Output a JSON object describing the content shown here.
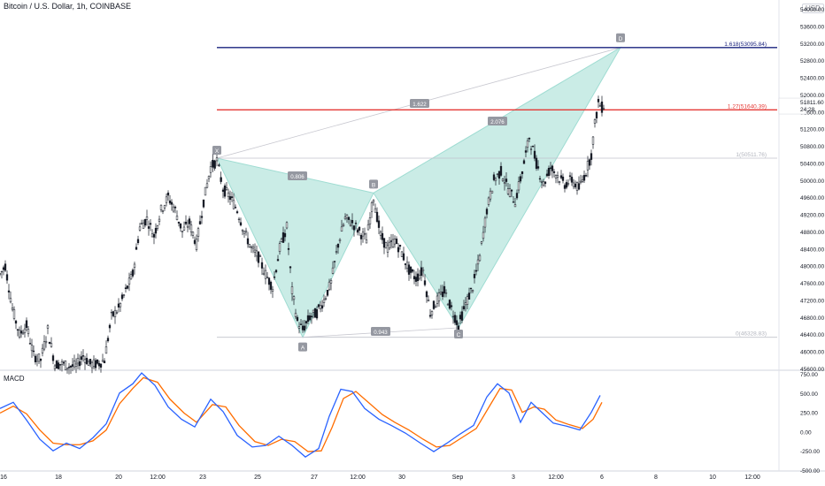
{
  "header": {
    "title": "Bitcoin / U.S. Dollar, 1h, COINBASE",
    "currency_badge": "USD"
  },
  "colors": {
    "candle_up": "#131722",
    "candle_down": "#131722",
    "pattern_fill": "#9fdcd2",
    "target_line": "#1a237e",
    "prz_line": "#e53935",
    "macd_line": "#2962ff",
    "signal_line": "#ff6d00"
  },
  "price_axis": {
    "ticks": [
      "54000.00",
      "53600.00",
      "53200.00",
      "52800.00",
      "52400.00",
      "52000.00",
      "51600.00",
      "51200.00",
      "50800.00",
      "50400.00",
      "50000.00",
      "49600.00",
      "49200.00",
      "48800.00",
      "48400.00",
      "48000.00",
      "47600.00",
      "47200.00",
      "46800.00",
      "46400.00",
      "46000.00",
      "45600.00"
    ],
    "last_price": "51811.60",
    "countdown": "24:28"
  },
  "time_axis": {
    "labels": [
      "16",
      "18",
      "20",
      "12:00",
      "23",
      "25",
      "27",
      "12:00",
      "30",
      "Sep",
      "3",
      "12:00",
      "6",
      "8",
      "10",
      "12:00"
    ]
  },
  "macd_axis": {
    "ticks": [
      "750.00",
      "500.00",
      "250.00",
      "0.00",
      "-250.00",
      "-500.00"
    ]
  },
  "macd_title": "MACD",
  "pattern": {
    "points": {
      "X": "X",
      "A": "A",
      "B": "B",
      "C": "C",
      "D": "D"
    },
    "ratios": {
      "xb": "0.806",
      "ac": "0.943",
      "bd": "2.076",
      "xd": "1.622"
    }
  },
  "levels": {
    "ext_1618": "1.618(53095.84)",
    "ext_127": "1.27(51640.39)",
    "level_1": "1(50511.76)",
    "level_0": "0(46328.83)"
  },
  "chart_data": {
    "type": "candlestick",
    "title": "Bitcoin / U.S. Dollar, 1h, COINBASE",
    "y_range": [
      45600,
      54000
    ],
    "x_labels": [
      "16",
      "18",
      "20",
      "12:00",
      "23",
      "25",
      "27",
      "12:00",
      "30",
      "Sep",
      "3",
      "12:00",
      "6",
      "8",
      "10",
      "12:00"
    ],
    "price_path": [
      {
        "x": 0,
        "y": 47800
      },
      {
        "x": 6,
        "y": 48000
      },
      {
        "x": 14,
        "y": 47000
      },
      {
        "x": 22,
        "y": 46400
      },
      {
        "x": 30,
        "y": 46600
      },
      {
        "x": 38,
        "y": 45900
      },
      {
        "x": 46,
        "y": 45800
      },
      {
        "x": 54,
        "y": 46500
      },
      {
        "x": 62,
        "y": 45700
      },
      {
        "x": 70,
        "y": 45700
      },
      {
        "x": 78,
        "y": 45650
      },
      {
        "x": 86,
        "y": 45650
      },
      {
        "x": 94,
        "y": 45900
      },
      {
        "x": 102,
        "y": 45700
      },
      {
        "x": 110,
        "y": 45700
      },
      {
        "x": 118,
        "y": 45800
      },
      {
        "x": 126,
        "y": 46800
      },
      {
        "x": 134,
        "y": 47000
      },
      {
        "x": 142,
        "y": 47400
      },
      {
        "x": 150,
        "y": 47800
      },
      {
        "x": 158,
        "y": 48900
      },
      {
        "x": 166,
        "y": 49100
      },
      {
        "x": 174,
        "y": 48700
      },
      {
        "x": 182,
        "y": 49300
      },
      {
        "x": 190,
        "y": 49600
      },
      {
        "x": 198,
        "y": 49300
      },
      {
        "x": 206,
        "y": 48800
      },
      {
        "x": 214,
        "y": 49000
      },
      {
        "x": 222,
        "y": 48500
      },
      {
        "x": 230,
        "y": 49500
      },
      {
        "x": 238,
        "y": 50300
      },
      {
        "x": 245,
        "y": 50450
      },
      {
        "x": 252,
        "y": 49800
      },
      {
        "x": 260,
        "y": 49600
      },
      {
        "x": 268,
        "y": 49300
      },
      {
        "x": 276,
        "y": 48800
      },
      {
        "x": 284,
        "y": 48400
      },
      {
        "x": 292,
        "y": 48200
      },
      {
        "x": 300,
        "y": 47800
      },
      {
        "x": 308,
        "y": 47500
      },
      {
        "x": 316,
        "y": 48400
      },
      {
        "x": 324,
        "y": 48900
      },
      {
        "x": 330,
        "y": 47400
      },
      {
        "x": 336,
        "y": 46700
      },
      {
        "x": 342,
        "y": 46500
      },
      {
        "x": 350,
        "y": 46800
      },
      {
        "x": 358,
        "y": 46900
      },
      {
        "x": 366,
        "y": 47200
      },
      {
        "x": 374,
        "y": 47600
      },
      {
        "x": 382,
        "y": 48500
      },
      {
        "x": 390,
        "y": 49100
      },
      {
        "x": 398,
        "y": 49000
      },
      {
        "x": 406,
        "y": 48800
      },
      {
        "x": 414,
        "y": 48600
      },
      {
        "x": 422,
        "y": 49600
      },
      {
        "x": 430,
        "y": 48700
      },
      {
        "x": 438,
        "y": 48400
      },
      {
        "x": 446,
        "y": 48600
      },
      {
        "x": 454,
        "y": 48300
      },
      {
        "x": 462,
        "y": 47900
      },
      {
        "x": 470,
        "y": 47700
      },
      {
        "x": 478,
        "y": 47900
      },
      {
        "x": 486,
        "y": 46900
      },
      {
        "x": 494,
        "y": 47200
      },
      {
        "x": 502,
        "y": 47400
      },
      {
        "x": 510,
        "y": 47000
      },
      {
        "x": 518,
        "y": 46600
      },
      {
        "x": 526,
        "y": 47100
      },
      {
        "x": 534,
        "y": 47500
      },
      {
        "x": 542,
        "y": 48200
      },
      {
        "x": 550,
        "y": 49300
      },
      {
        "x": 558,
        "y": 50000
      },
      {
        "x": 566,
        "y": 50200
      },
      {
        "x": 574,
        "y": 49800
      },
      {
        "x": 582,
        "y": 49500
      },
      {
        "x": 590,
        "y": 50200
      },
      {
        "x": 598,
        "y": 51000
      },
      {
        "x": 606,
        "y": 50400
      },
      {
        "x": 614,
        "y": 49900
      },
      {
        "x": 622,
        "y": 50300
      },
      {
        "x": 630,
        "y": 50100
      },
      {
        "x": 638,
        "y": 49900
      },
      {
        "x": 646,
        "y": 50000
      },
      {
        "x": 654,
        "y": 49800
      },
      {
        "x": 662,
        "y": 50200
      },
      {
        "x": 668,
        "y": 50600
      },
      {
        "x": 672,
        "y": 51300
      },
      {
        "x": 676,
        "y": 51800
      },
      {
        "x": 680,
        "y": 51700
      },
      {
        "x": 684,
        "y": 51800
      }
    ],
    "harmonic_pattern": {
      "X": {
        "label": "X",
        "price": 50511.76
      },
      "A": {
        "label": "A",
        "price": 46328.83
      },
      "B": {
        "label": "B",
        "price": 49700
      },
      "C": {
        "label": "C",
        "price": 46550
      },
      "D": {
        "label": "D",
        "price": 53095.84
      },
      "ratios": {
        "XB": 0.806,
        "AC": 0.943,
        "BD": 2.076,
        "XD": 1.622
      }
    },
    "horizontal_levels": [
      {
        "label": "1.618(53095.84)",
        "price": 53095.84
      },
      {
        "label": "1.27(51640.39)",
        "price": 51640.39
      },
      {
        "label": "1(50511.76)",
        "price": 50511.76
      },
      {
        "label": "0(46328.83)",
        "price": 46328.83
      }
    ],
    "macd": {
      "y_range": [
        -500,
        750
      ],
      "ticks": [
        750,
        500,
        250,
        0,
        -250,
        -500
      ],
      "macd_path": [
        {
          "x": 0,
          "y": 300
        },
        {
          "x": 15,
          "y": 380
        },
        {
          "x": 30,
          "y": 150
        },
        {
          "x": 45,
          "y": -100
        },
        {
          "x": 60,
          "y": -250
        },
        {
          "x": 75,
          "y": -150
        },
        {
          "x": 90,
          "y": -220
        },
        {
          "x": 105,
          "y": -80
        },
        {
          "x": 120,
          "y": 100
        },
        {
          "x": 135,
          "y": 500
        },
        {
          "x": 150,
          "y": 620
        },
        {
          "x": 160,
          "y": 760
        },
        {
          "x": 175,
          "y": 600
        },
        {
          "x": 190,
          "y": 320
        },
        {
          "x": 205,
          "y": 160
        },
        {
          "x": 220,
          "y": 60
        },
        {
          "x": 238,
          "y": 420
        },
        {
          "x": 252,
          "y": 260
        },
        {
          "x": 268,
          "y": -50
        },
        {
          "x": 285,
          "y": -200
        },
        {
          "x": 300,
          "y": -180
        },
        {
          "x": 315,
          "y": -60
        },
        {
          "x": 330,
          "y": -180
        },
        {
          "x": 345,
          "y": -330
        },
        {
          "x": 360,
          "y": -220
        },
        {
          "x": 372,
          "y": 200
        },
        {
          "x": 385,
          "y": 550
        },
        {
          "x": 398,
          "y": 520
        },
        {
          "x": 412,
          "y": 300
        },
        {
          "x": 428,
          "y": 160
        },
        {
          "x": 442,
          "y": 80
        },
        {
          "x": 458,
          "y": -20
        },
        {
          "x": 475,
          "y": -150
        },
        {
          "x": 490,
          "y": -260
        },
        {
          "x": 505,
          "y": -150
        },
        {
          "x": 520,
          "y": -30
        },
        {
          "x": 535,
          "y": 80
        },
        {
          "x": 550,
          "y": 450
        },
        {
          "x": 562,
          "y": 620
        },
        {
          "x": 575,
          "y": 500
        },
        {
          "x": 588,
          "y": 120
        },
        {
          "x": 600,
          "y": 380
        },
        {
          "x": 612,
          "y": 250
        },
        {
          "x": 625,
          "y": 110
        },
        {
          "x": 640,
          "y": 70
        },
        {
          "x": 655,
          "y": 20
        },
        {
          "x": 668,
          "y": 250
        },
        {
          "x": 678,
          "y": 470
        }
      ],
      "signal_path": [
        {
          "x": 0,
          "y": 240
        },
        {
          "x": 15,
          "y": 330
        },
        {
          "x": 30,
          "y": 230
        },
        {
          "x": 45,
          "y": 20
        },
        {
          "x": 60,
          "y": -150
        },
        {
          "x": 75,
          "y": -170
        },
        {
          "x": 90,
          "y": -170
        },
        {
          "x": 105,
          "y": -120
        },
        {
          "x": 120,
          "y": 20
        },
        {
          "x": 135,
          "y": 360
        },
        {
          "x": 150,
          "y": 560
        },
        {
          "x": 162,
          "y": 700
        },
        {
          "x": 178,
          "y": 640
        },
        {
          "x": 192,
          "y": 420
        },
        {
          "x": 208,
          "y": 240
        },
        {
          "x": 222,
          "y": 120
        },
        {
          "x": 240,
          "y": 350
        },
        {
          "x": 255,
          "y": 320
        },
        {
          "x": 270,
          "y": 80
        },
        {
          "x": 288,
          "y": -130
        },
        {
          "x": 303,
          "y": -180
        },
        {
          "x": 318,
          "y": -100
        },
        {
          "x": 333,
          "y": -130
        },
        {
          "x": 348,
          "y": -260
        },
        {
          "x": 363,
          "y": -250
        },
        {
          "x": 375,
          "y": 50
        },
        {
          "x": 388,
          "y": 430
        },
        {
          "x": 402,
          "y": 520
        },
        {
          "x": 416,
          "y": 380
        },
        {
          "x": 432,
          "y": 220
        },
        {
          "x": 446,
          "y": 120
        },
        {
          "x": 462,
          "y": 20
        },
        {
          "x": 478,
          "y": -100
        },
        {
          "x": 493,
          "y": -200
        },
        {
          "x": 508,
          "y": -180
        },
        {
          "x": 523,
          "y": -70
        },
        {
          "x": 538,
          "y": 40
        },
        {
          "x": 553,
          "y": 330
        },
        {
          "x": 565,
          "y": 560
        },
        {
          "x": 578,
          "y": 540
        },
        {
          "x": 590,
          "y": 250
        },
        {
          "x": 603,
          "y": 320
        },
        {
          "x": 615,
          "y": 290
        },
        {
          "x": 628,
          "y": 150
        },
        {
          "x": 643,
          "y": 90
        },
        {
          "x": 658,
          "y": 40
        },
        {
          "x": 670,
          "y": 160
        },
        {
          "x": 680,
          "y": 380
        }
      ]
    }
  }
}
